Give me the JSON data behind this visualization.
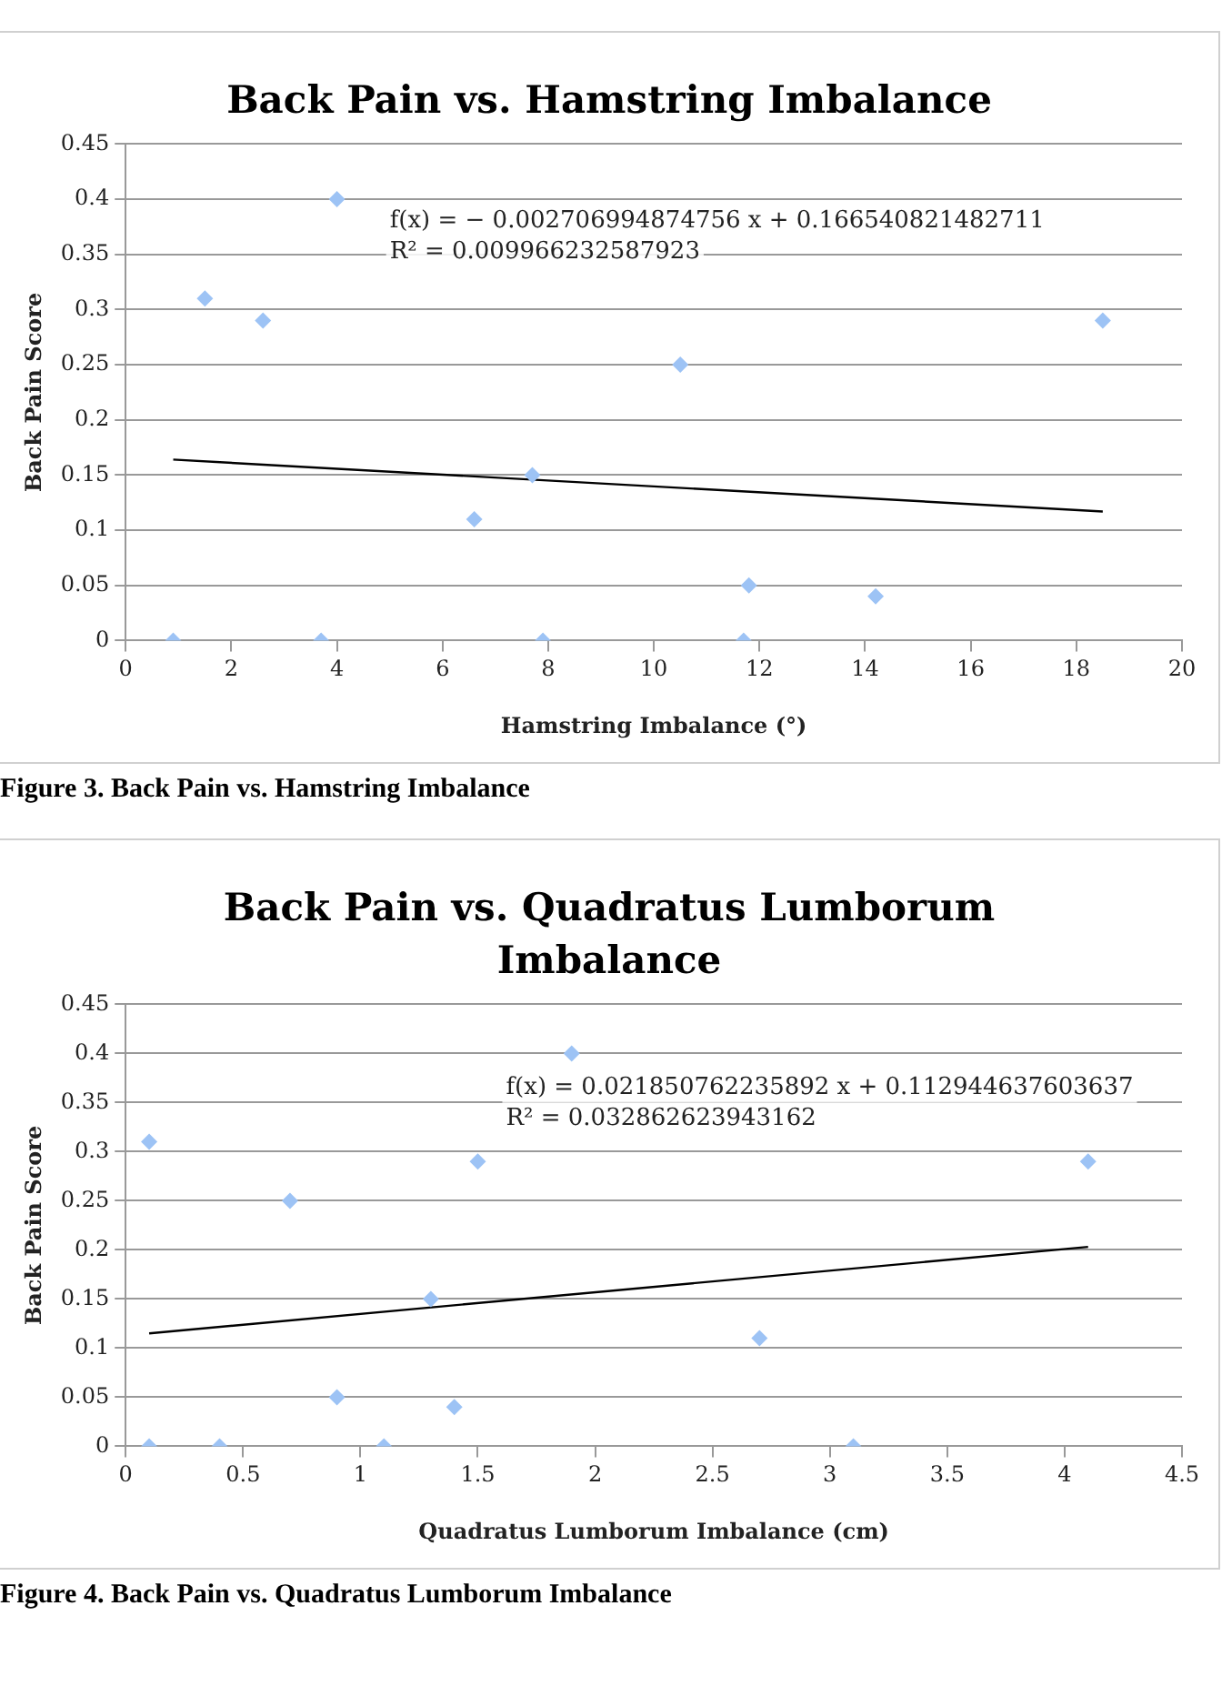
{
  "chart_data": [
    {
      "type": "scatter",
      "title": "Back Pain vs. Hamstring Imbalance",
      "xlabel": "Hamstring Imbalance (°)",
      "ylabel": "Back Pain Score",
      "series": [
        {
          "type": "scatter",
          "color": "#9dc3f5",
          "x": [
            0.9,
            1.5,
            2.6,
            3.7,
            4.0,
            6.6,
            7.7,
            7.9,
            10.5,
            11.7,
            11.8,
            14.2,
            18.5
          ],
          "values": [
            0,
            0.31,
            0.29,
            0,
            0.4,
            0.11,
            0.15,
            0,
            0.25,
            0,
            0.05,
            0.04,
            0.29
          ]
        },
        {
          "type": "line",
          "color": "#000000",
          "marker": "none",
          "x": [
            0.9,
            18.5
          ],
          "values": [
            0.164,
            0.117
          ]
        }
      ],
      "xlim": [
        0,
        20
      ],
      "xticks": [
        0,
        2,
        4,
        6,
        8,
        10,
        12,
        14,
        16,
        18,
        20
      ],
      "ylim": [
        0,
        0.45
      ],
      "yticks": [
        0,
        0.05,
        0.1,
        0.15,
        0.2,
        0.25,
        0.3,
        0.35,
        0.4,
        0.45
      ],
      "grid": "y",
      "legend": false,
      "marker": "diamond",
      "annotations": [
        "f(x) = − 0.002706994874756 x + 0.166540821482711",
        "R² = 0.009966232587923",
        "Figure 3. Back Pain vs. Hamstring Imbalance"
      ]
    },
    {
      "type": "scatter",
      "title": "Back Pain vs. Quadratus Lumborum Imbalance",
      "xlabel": "Quadratus Lumborum Imbalance (cm)",
      "ylabel": "Back Pain Score",
      "series": [
        {
          "type": "scatter",
          "color": "#9dc3f5",
          "x": [
            0.1,
            0.1,
            0.4,
            0.7,
            0.9,
            1.1,
            1.3,
            1.4,
            1.5,
            1.9,
            2.7,
            3.1,
            4.1
          ],
          "values": [
            0.31,
            0,
            0,
            0.25,
            0.05,
            0,
            0.15,
            0.04,
            0.29,
            0.4,
            0.11,
            0,
            0.29
          ]
        },
        {
          "type": "line",
          "color": "#000000",
          "marker": "none",
          "x": [
            0.1,
            4.1
          ],
          "values": [
            0.115,
            0.203
          ]
        }
      ],
      "xlim": [
        0,
        4.5
      ],
      "xticks": [
        0,
        0.5,
        1,
        1.5,
        2,
        2.5,
        3,
        3.5,
        4,
        4.5
      ],
      "ylim": [
        0,
        0.45
      ],
      "yticks": [
        0,
        0.05,
        0.1,
        0.15,
        0.2,
        0.25,
        0.3,
        0.35,
        0.4,
        0.45
      ],
      "grid": "y",
      "legend": false,
      "marker": "diamond",
      "annotations": [
        "f(x) = 0.021850762235892 x + 0.112944637603637",
        "R² = 0.032862623943162",
        "Figure 4. Back Pain vs. Quadratus Lumborum Imbalance"
      ]
    }
  ]
}
